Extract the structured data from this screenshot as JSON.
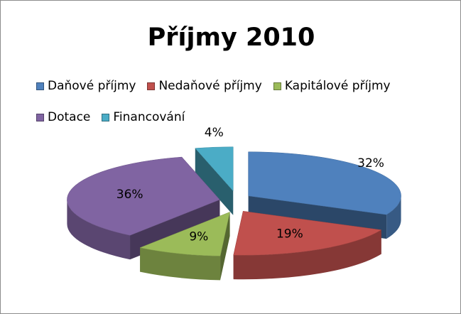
{
  "chart_data": {
    "type": "pie",
    "title": "Příjmy 2010",
    "categories": [
      "Daňové příjmy",
      "Nedaňové příjmy",
      "Kapitálové příjmy",
      "Dotace",
      "Financování"
    ],
    "values": [
      32,
      19,
      9,
      36,
      4
    ],
    "value_labels": [
      "32%",
      "19%",
      "9%",
      "36%",
      "4%"
    ],
    "colors": [
      "#4f81bd",
      "#c0504d",
      "#9bbb59",
      "#8064a2",
      "#4bacc6"
    ],
    "legend": "top"
  }
}
